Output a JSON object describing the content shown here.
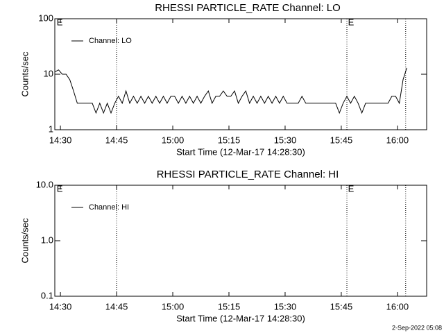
{
  "chart_data": [
    {
      "type": "line",
      "title": "RHESSI PARTICLE_RATE Channel: LO",
      "xlabel": "Start Time (12-Mar-17 14:28:30)",
      "ylabel": "Counts/sec",
      "log_scale": true,
      "xlim": [
        0,
        99.3
      ],
      "xticks": [
        {
          "value": 1.5,
          "label": "14:30"
        },
        {
          "value": 16.5,
          "label": "14:45"
        },
        {
          "value": 31.5,
          "label": "15:00"
        },
        {
          "value": 46.5,
          "label": "15:15"
        },
        {
          "value": 61.5,
          "label": "15:30"
        },
        {
          "value": 76.5,
          "label": "15:45"
        },
        {
          "value": 91.5,
          "label": "16:00"
        }
      ],
      "ylim": [
        1,
        100
      ],
      "yticks": [
        1,
        10,
        100
      ],
      "vlines": [
        16.5,
        78,
        93.7
      ],
      "annotations": [
        {
          "x": 0.5,
          "text": "E"
        },
        {
          "x": 78.3,
          "text": "E"
        }
      ],
      "series": [
        {
          "name": "Channel: LO",
          "color": "#000000",
          "x": [
            0,
            1,
            2,
            3,
            4,
            5,
            6,
            7,
            8,
            9,
            10,
            11,
            12,
            13,
            14,
            15,
            16,
            17,
            18,
            19,
            20,
            21,
            22,
            23,
            24,
            25,
            26,
            27,
            28,
            29,
            30,
            31,
            32,
            33,
            34,
            35,
            36,
            37,
            38,
            39,
            40,
            41,
            42,
            43,
            44,
            45,
            46,
            47,
            48,
            49,
            50,
            51,
            52,
            53,
            54,
            55,
            56,
            57,
            58,
            59,
            60,
            61,
            62,
            63,
            64,
            65,
            66,
            67,
            68,
            69,
            70,
            71,
            72,
            73,
            74,
            75,
            76,
            77,
            78,
            79,
            80,
            81,
            82,
            83,
            84,
            85,
            86,
            87,
            88,
            89,
            90,
            91,
            92,
            93,
            94
          ],
          "values": [
            11,
            12,
            10,
            10,
            8,
            5,
            3,
            3,
            3,
            3,
            3,
            2,
            3,
            2,
            3,
            2,
            3,
            4,
            3,
            5,
            3,
            4,
            3,
            4,
            3,
            4,
            3,
            4,
            3,
            4,
            3,
            4,
            4,
            3,
            4,
            3,
            4,
            3,
            4,
            3,
            4,
            5,
            3,
            4,
            4,
            5,
            4,
            4,
            5,
            3,
            4,
            5,
            3,
            4,
            3,
            4,
            3,
            4,
            3,
            4,
            3,
            4,
            3,
            3,
            3,
            3,
            4,
            3,
            3,
            3,
            3,
            3,
            3,
            3,
            3,
            3,
            2,
            3,
            4,
            3,
            4,
            3,
            2,
            3,
            3,
            3,
            3,
            3,
            3,
            3,
            4,
            4,
            3,
            8,
            13
          ]
        }
      ]
    },
    {
      "type": "line",
      "title": "RHESSI PARTICLE_RATE Channel: HI",
      "xlabel": "Start Time (12-Mar-17 14:28:30)",
      "ylabel": "Counts/sec",
      "log_scale": true,
      "xlim": [
        0,
        99.3
      ],
      "xticks": [
        {
          "value": 1.5,
          "label": "14:30"
        },
        {
          "value": 16.5,
          "label": "14:45"
        },
        {
          "value": 31.5,
          "label": "15:00"
        },
        {
          "value": 46.5,
          "label": "15:15"
        },
        {
          "value": 61.5,
          "label": "15:30"
        },
        {
          "value": 76.5,
          "label": "15:45"
        },
        {
          "value": 91.5,
          "label": "16:00"
        }
      ],
      "ylim": [
        0.1,
        10
      ],
      "yticks": [
        0.1,
        {
          "value": 1,
          "label": "1.0"
        },
        {
          "value": 10,
          "label": "10.0"
        }
      ],
      "vlines": [
        16.5,
        78,
        93.7
      ],
      "annotations": [
        {
          "x": 0.5,
          "text": "E"
        },
        {
          "x": 78.3,
          "text": "E"
        }
      ],
      "series": [
        {
          "name": "Channel: HI",
          "color": "#000000",
          "x": [],
          "values": []
        }
      ]
    }
  ],
  "footer": "2-Sep-2022 05:08"
}
